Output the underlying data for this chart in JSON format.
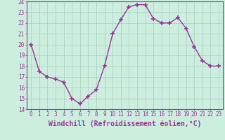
{
  "x": [
    0,
    1,
    2,
    3,
    4,
    5,
    6,
    7,
    8,
    9,
    10,
    11,
    12,
    13,
    14,
    15,
    16,
    17,
    18,
    19,
    20,
    21,
    22,
    23
  ],
  "y": [
    20.0,
    17.5,
    17.0,
    16.8,
    16.5,
    15.0,
    14.5,
    15.2,
    15.8,
    18.0,
    21.0,
    22.3,
    23.5,
    23.7,
    23.7,
    22.4,
    22.0,
    22.0,
    22.5,
    21.5,
    19.8,
    18.5,
    18.0,
    18.0
  ],
  "line_color": "#993399",
  "marker": "+",
  "marker_size": 4,
  "marker_lw": 1.2,
  "bg_color": "#cceedd",
  "grid_color": "#aacccc",
  "axis_color": "#993399",
  "xlabel": "Windchill (Refroidissement éolien,°C)",
  "ylim": [
    14,
    24
  ],
  "xlim": [
    -0.5,
    23.5
  ],
  "yticks": [
    14,
    15,
    16,
    17,
    18,
    19,
    20,
    21,
    22,
    23,
    24
  ],
  "xticks": [
    0,
    1,
    2,
    3,
    4,
    5,
    6,
    7,
    8,
    9,
    10,
    11,
    12,
    13,
    14,
    15,
    16,
    17,
    18,
    19,
    20,
    21,
    22,
    23
  ],
  "tick_fontsize": 5.5,
  "xlabel_fontsize": 7.0,
  "linewidth": 1.0
}
